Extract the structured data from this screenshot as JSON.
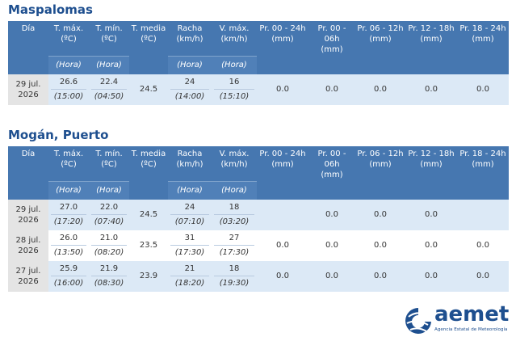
{
  "columns": [
    {
      "label": [
        "Día"
      ]
    },
    {
      "label": [
        "T. máx.",
        "(ºC)"
      ],
      "hour": "(Hora)"
    },
    {
      "label": [
        "T. mín.",
        "(ºC)"
      ],
      "hour": "(Hora)"
    },
    {
      "label": [
        "T. media",
        "(ºC)"
      ]
    },
    {
      "label": [
        "Racha",
        "(km/h)"
      ],
      "hour": "(Hora)"
    },
    {
      "label": [
        "V. máx.",
        "(km/h)"
      ],
      "hour": "(Hora)"
    },
    {
      "label": [
        "Pr. 00 - 24h",
        "(mm)"
      ]
    },
    {
      "label": [
        "Pr. 00 - 06h",
        "(mm)"
      ]
    },
    {
      "label": [
        "Pr. 06 - 12h",
        "(mm)"
      ]
    },
    {
      "label": [
        "Pr. 12 - 18h",
        "(mm)"
      ]
    },
    {
      "label": [
        "Pr. 18 - 24h",
        "(mm)"
      ]
    }
  ],
  "sections": [
    {
      "title": "Maspalomas",
      "rows": [
        [
          "29 jul. 2026",
          {
            "value": "26.6",
            "time": "(15:00)"
          },
          {
            "value": "22.4",
            "time": "(04:50)"
          },
          "24.5",
          {
            "value": "24",
            "time": "(14:00)"
          },
          {
            "value": "16",
            "time": "(15:10)"
          },
          "0.0",
          "0.0",
          "0.0",
          "0.0",
          "0.0"
        ]
      ]
    },
    {
      "title": "Mogán, Puerto",
      "rows": [
        [
          "29 jul. 2026",
          {
            "value": "27.0",
            "time": "(17:20)"
          },
          {
            "value": "22.0",
            "time": "(07:40)"
          },
          "24.5",
          {
            "value": "24",
            "time": "(07:10)"
          },
          {
            "value": "18",
            "time": "(03:20)"
          },
          null,
          "0.0",
          "0.0",
          "0.0",
          null
        ],
        [
          "28 jul. 2026",
          {
            "value": "26.0",
            "time": "(13:50)"
          },
          {
            "value": "21.0",
            "time": "(08:20)"
          },
          "23.5",
          {
            "value": "31",
            "time": "(17:30)"
          },
          {
            "value": "27",
            "time": "(17:30)"
          },
          "0.0",
          "0.0",
          "0.0",
          "0.0",
          "0.0"
        ],
        [
          "27 jul. 2026",
          {
            "value": "25.9",
            "time": "(16:00)"
          },
          {
            "value": "21.9",
            "time": "(08:30)"
          },
          "23.9",
          {
            "value": "21",
            "time": "(18:20)"
          },
          {
            "value": "18",
            "time": "(19:30)"
          },
          "0.0",
          "0.0",
          "0.0",
          "0.0",
          "0.0"
        ]
      ]
    }
  ],
  "logo": {
    "name": "aemet",
    "subtitle": "Agencia Estatal de Meteorología"
  }
}
